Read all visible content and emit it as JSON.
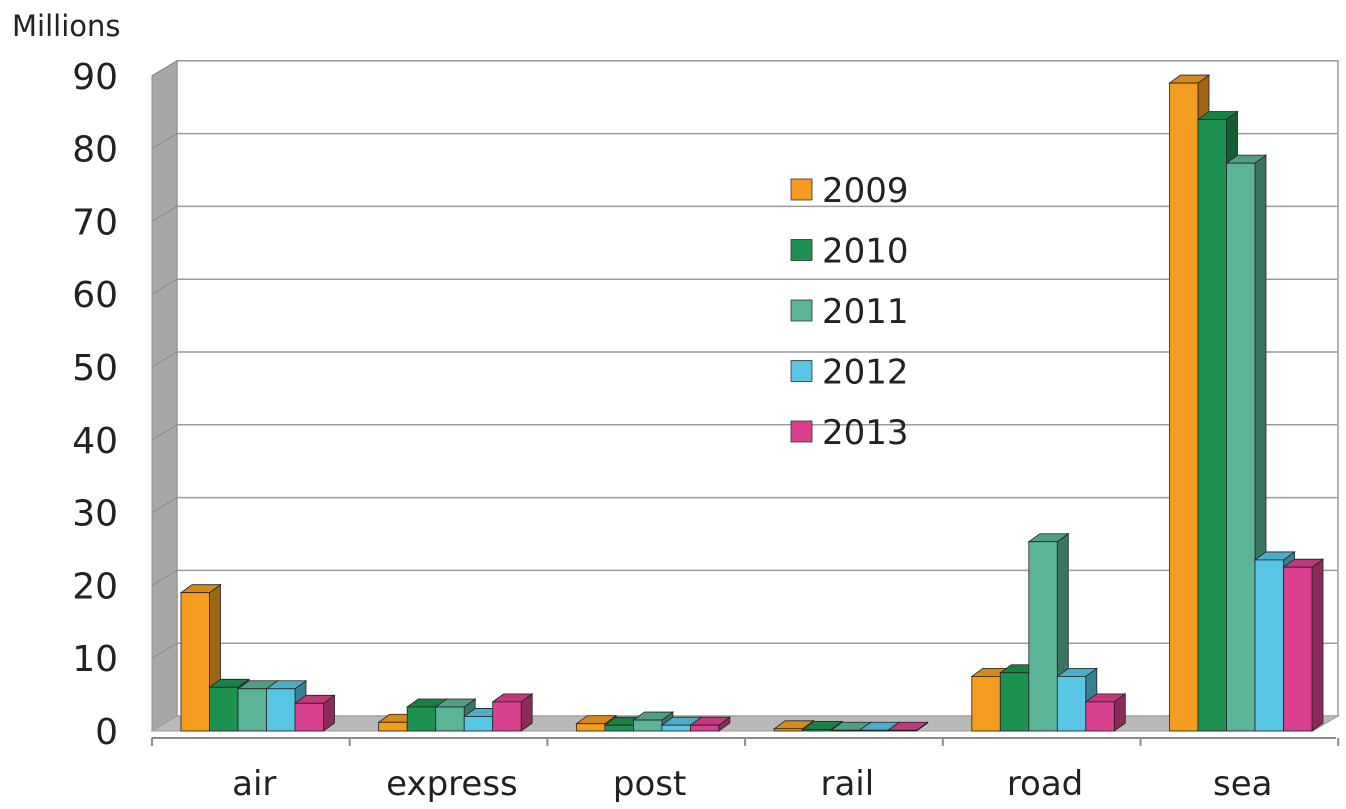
{
  "chart_data": {
    "type": "bar",
    "ylabel": "Millions",
    "ylim": [
      0,
      90
    ],
    "yticks": [
      0,
      10,
      20,
      30,
      40,
      50,
      60,
      70,
      80,
      90
    ],
    "grid": true,
    "three_d": true,
    "legend_position": "center",
    "categories": [
      "air",
      "express",
      "post",
      "rail",
      "road",
      "sea"
    ],
    "series": [
      {
        "name": "2009",
        "color": "#F39C1F",
        "values": [
          19,
          1.2,
          1.0,
          0.3,
          7.5,
          89
        ]
      },
      {
        "name": "2010",
        "color": "#1E9150",
        "values": [
          6,
          3.3,
          0.8,
          0.2,
          8,
          84
        ]
      },
      {
        "name": "2011",
        "color": "#5BB497",
        "values": [
          5.8,
          3.3,
          1.5,
          0.1,
          26,
          78
        ]
      },
      {
        "name": "2012",
        "color": "#57C5E3",
        "values": [
          5.8,
          2.0,
          0.8,
          0.1,
          7.5,
          23.5
        ]
      },
      {
        "name": "2013",
        "color": "#D9418E",
        "values": [
          3.8,
          4.0,
          0.8,
          0.1,
          4.0,
          22.5
        ]
      }
    ]
  }
}
